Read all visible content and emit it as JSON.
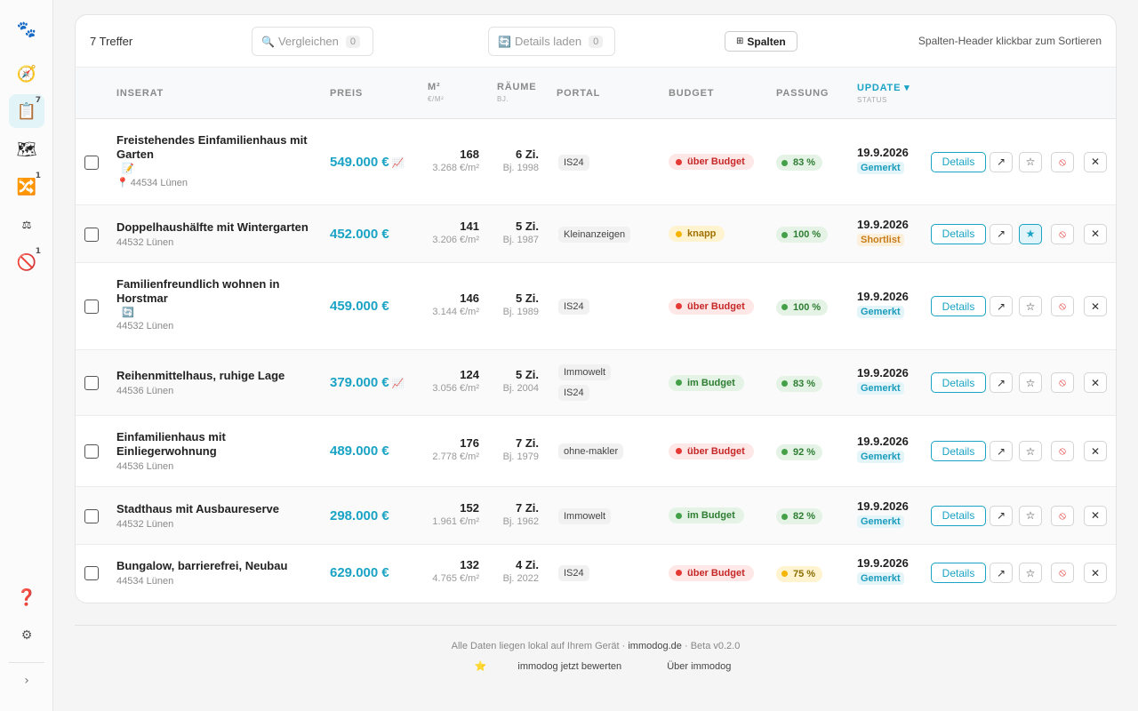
{
  "sidebar": {
    "logo_icon": "paw-icon",
    "items": [
      {
        "name": "compass-icon",
        "glyph": "🧭",
        "badge": ""
      },
      {
        "name": "notepad-icon",
        "glyph": "📋",
        "badge": "7"
      },
      {
        "name": "map-icon",
        "glyph": "🗺",
        "badge": ""
      },
      {
        "name": "shuffle-icon",
        "glyph": "🔀",
        "badge": "1"
      },
      {
        "name": "scale-icon",
        "glyph": "⚖",
        "badge": ""
      },
      {
        "name": "ban-icon",
        "glyph": "🚫",
        "badge": "1"
      }
    ],
    "help_glyph": "❓",
    "settings_glyph": "⚙",
    "expand_glyph": "›"
  },
  "toolbar": {
    "count": "7 Treffer",
    "compare_label": "Vergleichen",
    "compare_count": "0",
    "details_label": "Details laden",
    "details_count": "0",
    "columns_label": "Spalten",
    "hint": "Spalten-Header klickbar zum Sortieren"
  },
  "columns": {
    "listing": "INSERAT",
    "price": "PREIS",
    "sqm": "M²",
    "sqm_sub": "€/M²",
    "rooms": "RÄUME",
    "rooms_sub": "BJ.",
    "portal": "PORTAL",
    "budget": "BUDGET",
    "fit": "PASSUNG",
    "update": "UPDATE ▾",
    "update_sub": "STATUS"
  },
  "rows": [
    {
      "title": "Freistehendes Einfamilienhaus mit Garten",
      "extra_icon": "📝",
      "pin": "📍",
      "location": "44534 Lünen",
      "price": "549.000 €",
      "trend": "📈",
      "sqm": "168",
      "per_sqm": "3.268 €/m²",
      "rooms": "6 Zi.",
      "year": "Bj. 1998",
      "portals": [
        "IS24"
      ],
      "budget": "über Budget",
      "budget_type": "over",
      "fit": "83 %",
      "fit_type": "good",
      "date": "19.9.2026",
      "status": "Gemerkt",
      "status_type": "gem",
      "starred": false,
      "details": "Details"
    },
    {
      "title": "Doppelhaushälfte mit Wintergarten",
      "extra_icon": "",
      "pin": "",
      "location": "44532 Lünen",
      "price": "452.000 €",
      "trend": "",
      "sqm": "141",
      "per_sqm": "3.206 €/m²",
      "rooms": "5 Zi.",
      "year": "Bj. 1987",
      "portals": [
        "Kleinanzeigen"
      ],
      "budget": "knapp",
      "budget_type": "tight",
      "fit": "100 %",
      "fit_type": "good",
      "date": "19.9.2026",
      "status": "Shortlist",
      "status_type": "short",
      "starred": true,
      "details": "Details"
    },
    {
      "title": "Familienfreundlich wohnen in Horstmar",
      "extra_icon": "🔄",
      "pin": "",
      "location": "44532 Lünen",
      "price": "459.000 €",
      "trend": "",
      "sqm": "146",
      "per_sqm": "3.144 €/m²",
      "rooms": "5 Zi.",
      "year": "Bj. 1989",
      "portals": [
        "IS24"
      ],
      "budget": "über Budget",
      "budget_type": "over",
      "fit": "100 %",
      "fit_type": "good",
      "date": "19.9.2026",
      "status": "Gemerkt",
      "status_type": "gem",
      "starred": false,
      "details": "Details"
    },
    {
      "title": "Reihenmittelhaus, ruhige Lage",
      "extra_icon": "",
      "pin": "",
      "location": "44536 Lünen",
      "price": "379.000 €",
      "trend": "📈",
      "sqm": "124",
      "per_sqm": "3.056 €/m²",
      "rooms": "5 Zi.",
      "year": "Bj. 2004",
      "portals": [
        "Immowelt",
        "IS24"
      ],
      "budget": "im Budget",
      "budget_type": "ok",
      "fit": "83 %",
      "fit_type": "good",
      "date": "19.9.2026",
      "status": "Gemerkt",
      "status_type": "gem",
      "starred": false,
      "details": "Details"
    },
    {
      "title": "Einfamilienhaus mit Einliegerwohnung",
      "extra_icon": "",
      "pin": "",
      "location": "44536 Lünen",
      "price": "489.000 €",
      "trend": "",
      "sqm": "176",
      "per_sqm": "2.778 €/m²",
      "rooms": "7 Zi.",
      "year": "Bj. 1979",
      "portals": [
        "ohne-makler"
      ],
      "budget": "über Budget",
      "budget_type": "over",
      "fit": "92 %",
      "fit_type": "good",
      "date": "19.9.2026",
      "status": "Gemerkt",
      "status_type": "gem",
      "starred": false,
      "details": "Details"
    },
    {
      "title": "Stadthaus mit Ausbaureserve",
      "extra_icon": "",
      "pin": "",
      "location": "44532 Lünen",
      "price": "298.000 €",
      "trend": "",
      "sqm": "152",
      "per_sqm": "1.961 €/m²",
      "rooms": "7 Zi.",
      "year": "Bj. 1962",
      "portals": [
        "Immowelt"
      ],
      "budget": "im Budget",
      "budget_type": "ok",
      "fit": "82 %",
      "fit_type": "good",
      "date": "19.9.2026",
      "status": "Gemerkt",
      "status_type": "gem",
      "starred": false,
      "details": "Details"
    },
    {
      "title": "Bungalow, barrierefrei, Neubau",
      "extra_icon": "",
      "pin": "",
      "location": "44534 Lünen",
      "price": "629.000 €",
      "trend": "",
      "sqm": "132",
      "per_sqm": "4.765 €/m²",
      "rooms": "4 Zi.",
      "year": "Bj. 2022",
      "portals": [
        "IS24"
      ],
      "budget": "über Budget",
      "budget_type": "over",
      "fit": "75 %",
      "fit_type": "mid",
      "date": "19.9.2026",
      "status": "Gemerkt",
      "status_type": "gem",
      "starred": false,
      "details": "Details"
    }
  ],
  "footer": {
    "text": "Alle Daten liegen lokal auf Ihrem Gerät ·",
    "brand": "immodog.de",
    "version": "· Beta v0.2.0",
    "rate_icon": "⭐",
    "rate_label": "immodog jetzt bewerten",
    "about_label": "Über immodog"
  },
  "colors": {
    "accent": "#1aa3c4",
    "over_budget": "#e53935",
    "in_budget": "#43a047",
    "tight": "#f5b400"
  }
}
